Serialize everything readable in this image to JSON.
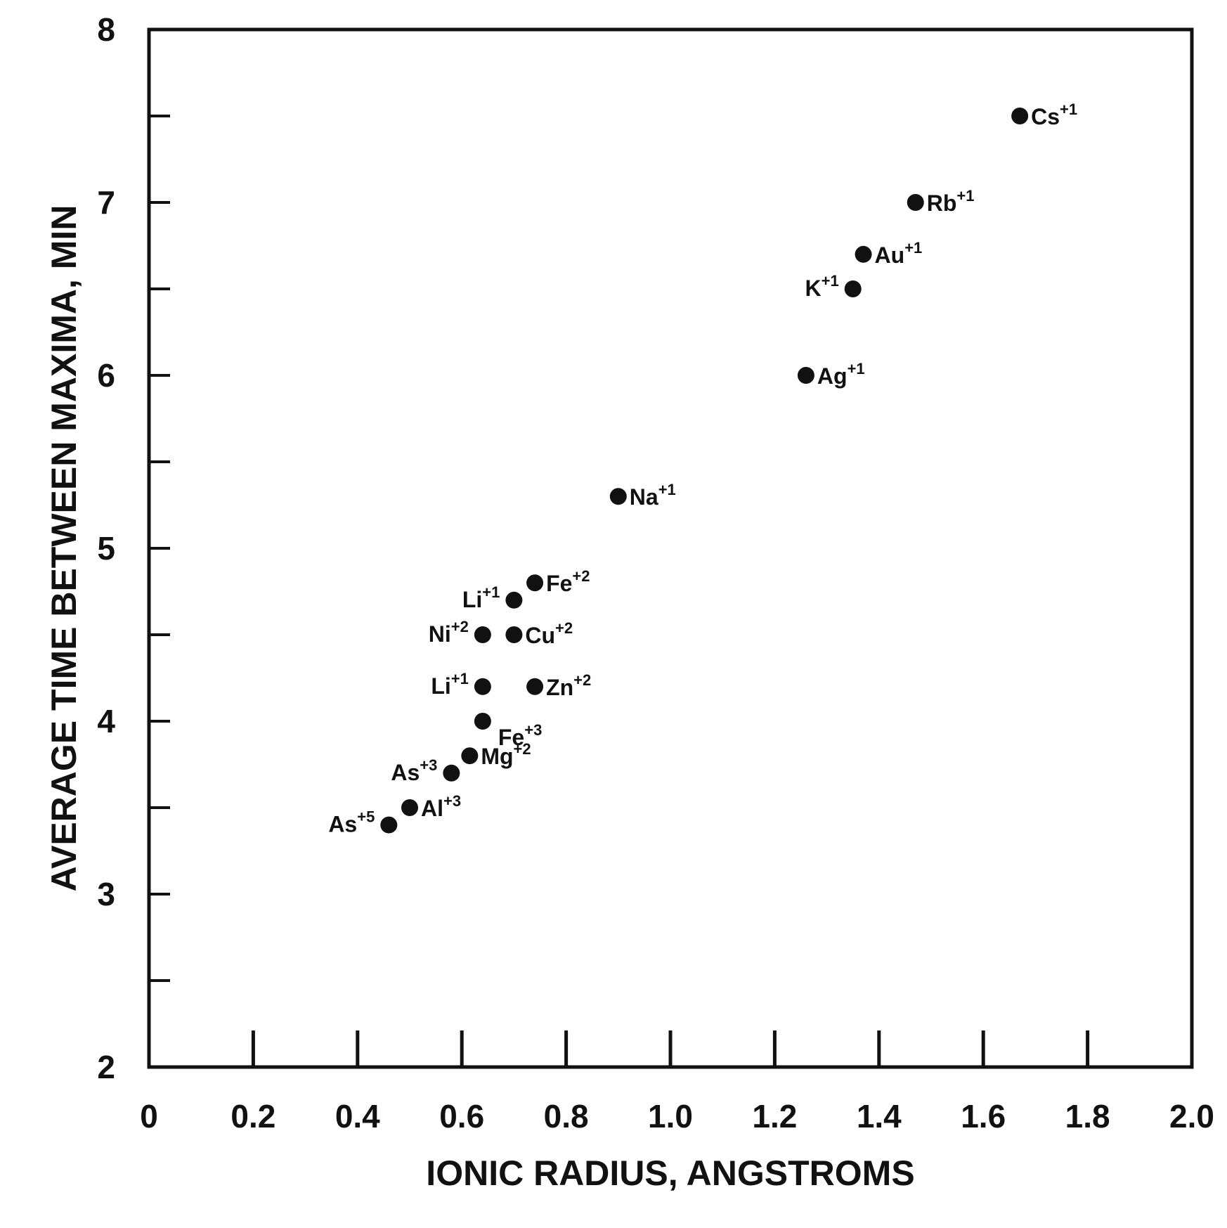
{
  "chart_data": {
    "type": "scatter",
    "title": "",
    "xlabel": "IONIC RADIUS, ANGSTROMS",
    "ylabel": "AVERAGE TIME BETWEEN MAXIMA, MIN",
    "xlim": [
      0,
      2.0
    ],
    "ylim": [
      2,
      8
    ],
    "x_ticks": [
      "0",
      "0.2",
      "0.4",
      "0.6",
      "0.8",
      "1.0",
      "1.2",
      "1.4",
      "1.6",
      "1.8",
      "2.0"
    ],
    "y_ticks": [
      "2",
      "3",
      "4",
      "5",
      "6",
      "7",
      "8"
    ],
    "grid": false,
    "legend": "none",
    "marker_color": "#111111",
    "points": [
      {
        "label": "As",
        "charge": "+5",
        "x": 0.46,
        "y": 3.4,
        "label_side": "left"
      },
      {
        "label": "Al",
        "charge": "+3",
        "x": 0.5,
        "y": 3.5,
        "label_side": "right"
      },
      {
        "label": "As",
        "charge": "+3",
        "x": 0.58,
        "y": 3.7,
        "label_side": "left"
      },
      {
        "label": "Mg",
        "charge": "+2",
        "x": 0.615,
        "y": 3.8,
        "label_side": "right"
      },
      {
        "label": "Fe",
        "charge": "+3",
        "x": 0.64,
        "y": 4.0,
        "label_side": "right-below"
      },
      {
        "label": "Li",
        "charge": "+1",
        "x": 0.64,
        "y": 4.2,
        "label_side": "left"
      },
      {
        "label": "Zn",
        "charge": "+2",
        "x": 0.74,
        "y": 4.2,
        "label_side": "right"
      },
      {
        "label": "Ni",
        "charge": "+2",
        "x": 0.64,
        "y": 4.5,
        "label_side": "left"
      },
      {
        "label": "Cu",
        "charge": "+2",
        "x": 0.7,
        "y": 4.5,
        "label_side": "right"
      },
      {
        "label": "Li",
        "charge": "+1",
        "x": 0.7,
        "y": 4.7,
        "label_side": "left"
      },
      {
        "label": "Fe",
        "charge": "+2",
        "x": 0.74,
        "y": 4.8,
        "label_side": "right"
      },
      {
        "label": "Na",
        "charge": "+1",
        "x": 0.9,
        "y": 5.3,
        "label_side": "right"
      },
      {
        "label": "Ag",
        "charge": "+1",
        "x": 1.26,
        "y": 6.0,
        "label_side": "right"
      },
      {
        "label": "K",
        "charge": "+1",
        "x": 1.35,
        "y": 6.5,
        "label_side": "left"
      },
      {
        "label": "Au",
        "charge": "+1",
        "x": 1.37,
        "y": 6.7,
        "label_side": "right"
      },
      {
        "label": "Rb",
        "charge": "+1",
        "x": 1.47,
        "y": 7.0,
        "label_side": "right"
      },
      {
        "label": "Cs",
        "charge": "+1",
        "x": 1.67,
        "y": 7.5,
        "label_side": "right"
      }
    ]
  }
}
